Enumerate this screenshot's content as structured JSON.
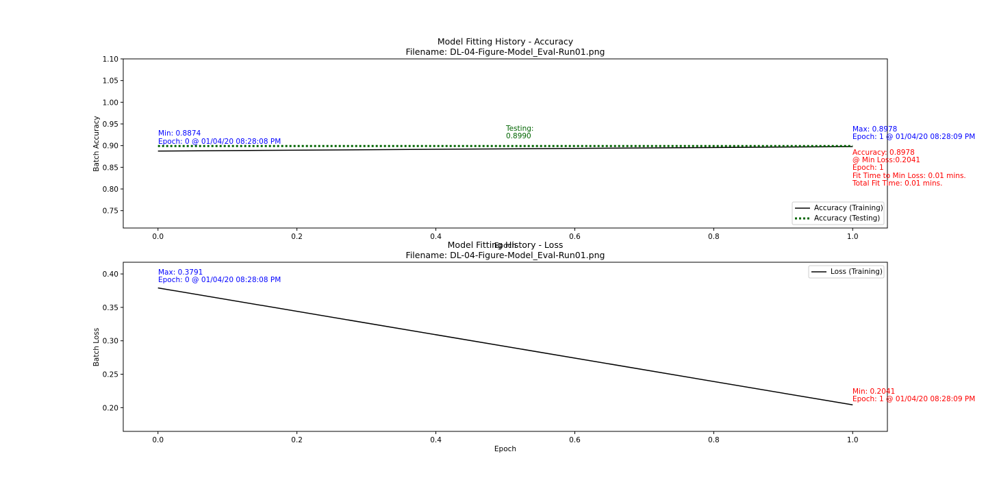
{
  "chart_data": [
    {
      "type": "line",
      "title": "Model Fitting History - Accuracy",
      "subtitle": "Filename: DL-04-Figure-Model_Eval-Run01.png",
      "xlabel": "Epoch",
      "ylabel": "Batch Accuracy",
      "xlim": [
        -0.05,
        1.05
      ],
      "ylim": [
        0.71,
        1.1
      ],
      "x_ticks": [
        "0.0",
        "0.2",
        "0.4",
        "0.6",
        "0.8",
        "1.0"
      ],
      "y_ticks": [
        "0.75",
        "0.80",
        "0.85",
        "0.90",
        "0.95",
        "1.00",
        "1.05",
        "1.10"
      ],
      "grid": false,
      "legend_position": "bottom-right",
      "series": [
        {
          "name": "Accuracy (Training)",
          "style": "solid",
          "color": "#000000",
          "x": [
            0,
            1
          ],
          "y": [
            0.8874,
            0.8978
          ]
        },
        {
          "name": "Accuracy (Testing)",
          "style": "dotted",
          "color": "#006400",
          "x": [
            0,
            1
          ],
          "y": [
            0.899,
            0.899
          ]
        }
      ],
      "annotations": [
        {
          "lines": [
            "Min: 0.8874",
            "Epoch: 0 @ 01/04/20 08:28:08 PM"
          ],
          "color": "#0000ff"
        },
        {
          "lines": [
            "Testing:",
            "0.8990"
          ],
          "color": "#006400"
        },
        {
          "lines": [
            "Max: 0.8978",
            "Epoch: 1 @ 01/04/20 08:28:09 PM"
          ],
          "color": "#0000ff"
        },
        {
          "lines": [
            "Accuracy: 0.8978",
            "@ Min Loss:0.2041",
            "Epoch: 1",
            "Fit Time to Min Loss: 0.01 mins.",
            "Total Fit Time: 0.01 mins."
          ],
          "color": "#ff0000"
        }
      ]
    },
    {
      "type": "line",
      "title": "Model Fitting History - Loss",
      "subtitle": "Filename: DL-04-Figure-Model_Eval-Run01.png",
      "xlabel": "Epoch",
      "ylabel": "Batch Loss",
      "xlim": [
        -0.05,
        1.05
      ],
      "ylim": [
        0.1645,
        0.4175
      ],
      "x_ticks": [
        "0.0",
        "0.2",
        "0.4",
        "0.6",
        "0.8",
        "1.0"
      ],
      "y_ticks": [
        "0.20",
        "0.25",
        "0.30",
        "0.35",
        "0.40"
      ],
      "grid": false,
      "legend_position": "top-right",
      "series": [
        {
          "name": "Loss (Training)",
          "style": "solid",
          "color": "#000000",
          "x": [
            0,
            1
          ],
          "y": [
            0.3791,
            0.2041
          ]
        }
      ],
      "annotations": [
        {
          "lines": [
            "Max: 0.3791",
            "Epoch: 0 @ 01/04/20 08:28:08 PM"
          ],
          "color": "#0000ff"
        },
        {
          "lines": [
            "Min: 0.2041",
            "Epoch: 1 @ 01/04/20 08:28:09 PM"
          ],
          "color": "#ff0000"
        }
      ]
    }
  ]
}
